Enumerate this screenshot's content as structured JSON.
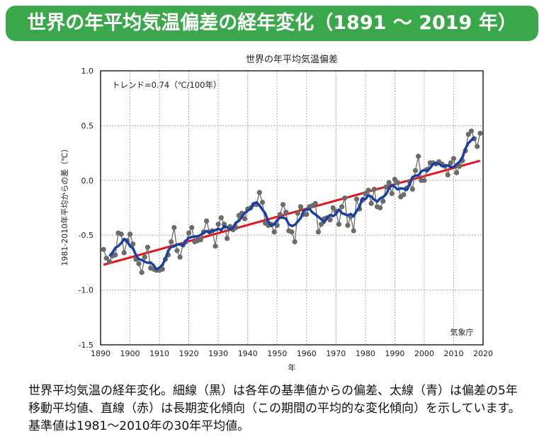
{
  "banner": {
    "title": "世界の年平均気温偏差の経年変化（1891 ～ 2019 年）"
  },
  "chart_data": {
    "type": "line",
    "title": "世界の年平均気温偏差",
    "xlabel": "年",
    "ylabel": "1981-2010年平均からの差（℃）",
    "xlim": [
      1890,
      2020
    ],
    "ylim": [
      -1.5,
      1.0
    ],
    "xticks": [
      1890,
      1900,
      1910,
      1920,
      1930,
      1940,
      1950,
      1960,
      1970,
      1980,
      1990,
      2000,
      2010,
      2020
    ],
    "yticks": [
      "-1.5",
      "-1.0",
      "-0.5",
      "0.0",
      "0.5",
      "1.0"
    ],
    "grid": true,
    "annotation": "トレンド=0.74（℃/100年）",
    "source_label": "気象庁",
    "colors": {
      "annual": "#6b6b6b",
      "moving_average": "#1a3fa0",
      "trend": "#e8141c"
    },
    "trend_per_century": 0.74,
    "moving_average_window": 5,
    "x": [
      1891,
      1892,
      1893,
      1894,
      1895,
      1896,
      1897,
      1898,
      1899,
      1900,
      1901,
      1902,
      1903,
      1904,
      1905,
      1906,
      1907,
      1908,
      1909,
      1910,
      1911,
      1912,
      1913,
      1914,
      1915,
      1916,
      1917,
      1918,
      1919,
      1920,
      1921,
      1922,
      1923,
      1924,
      1925,
      1926,
      1927,
      1928,
      1929,
      1930,
      1931,
      1932,
      1933,
      1934,
      1935,
      1936,
      1937,
      1938,
      1939,
      1940,
      1941,
      1942,
      1943,
      1944,
      1945,
      1946,
      1947,
      1948,
      1949,
      1950,
      1951,
      1952,
      1953,
      1954,
      1955,
      1956,
      1957,
      1958,
      1959,
      1960,
      1961,
      1962,
      1963,
      1964,
      1965,
      1966,
      1967,
      1968,
      1969,
      1970,
      1971,
      1972,
      1973,
      1974,
      1975,
      1976,
      1977,
      1978,
      1979,
      1980,
      1981,
      1982,
      1983,
      1984,
      1985,
      1986,
      1987,
      1988,
      1989,
      1990,
      1991,
      1992,
      1993,
      1994,
      1995,
      1996,
      1997,
      1998,
      1999,
      2000,
      2001,
      2002,
      2003,
      2004,
      2005,
      2006,
      2007,
      2008,
      2009,
      2010,
      2011,
      2012,
      2013,
      2014,
      2015,
      2016,
      2017,
      2018,
      2019
    ],
    "values": [
      -0.63,
      -0.71,
      -0.74,
      -0.69,
      -0.68,
      -0.48,
      -0.49,
      -0.66,
      -0.55,
      -0.49,
      -0.58,
      -0.72,
      -0.76,
      -0.84,
      -0.7,
      -0.61,
      -0.8,
      -0.81,
      -0.82,
      -0.82,
      -0.81,
      -0.72,
      -0.68,
      -0.56,
      -0.43,
      -0.64,
      -0.7,
      -0.59,
      -0.56,
      -0.48,
      -0.43,
      -0.56,
      -0.55,
      -0.54,
      -0.47,
      -0.37,
      -0.47,
      -0.46,
      -0.6,
      -0.4,
      -0.34,
      -0.4,
      -0.53,
      -0.42,
      -0.45,
      -0.43,
      -0.32,
      -0.3,
      -0.35,
      -0.26,
      -0.25,
      -0.22,
      -0.22,
      -0.11,
      -0.2,
      -0.39,
      -0.41,
      -0.4,
      -0.47,
      -0.41,
      -0.31,
      -0.22,
      -0.29,
      -0.46,
      -0.47,
      -0.56,
      -0.3,
      -0.24,
      -0.31,
      -0.31,
      -0.24,
      -0.23,
      -0.21,
      -0.47,
      -0.4,
      -0.35,
      -0.34,
      -0.36,
      -0.25,
      -0.28,
      -0.4,
      -0.24,
      -0.16,
      -0.41,
      -0.33,
      -0.46,
      -0.17,
      -0.26,
      -0.18,
      -0.12,
      -0.09,
      -0.21,
      -0.08,
      -0.24,
      -0.25,
      -0.19,
      -0.06,
      -0.02,
      -0.12,
      0.01,
      -0.02,
      -0.15,
      -0.13,
      -0.07,
      -0.01,
      -0.08,
      0.09,
      0.22,
      0.0,
      0.0,
      0.1,
      0.16,
      0.16,
      0.15,
      0.17,
      0.15,
      0.13,
      0.05,
      0.16,
      0.2,
      0.07,
      0.13,
      0.18,
      0.27,
      0.42,
      0.45,
      0.38,
      0.31,
      0.43
    ],
    "trend_line": {
      "x": [
        1891,
        2019
      ],
      "y": [
        -0.77,
        0.18
      ]
    }
  },
  "caption": "世界平均気温の経年変化。細線（黒）は各年の基準値からの偏差、太線（青）は偏差の5年移動平均値、直線（赤）は長期変化傾向（この期間の平均的な変化傾向）を示しています。基準値は1981～2010年の30年平均値。"
}
